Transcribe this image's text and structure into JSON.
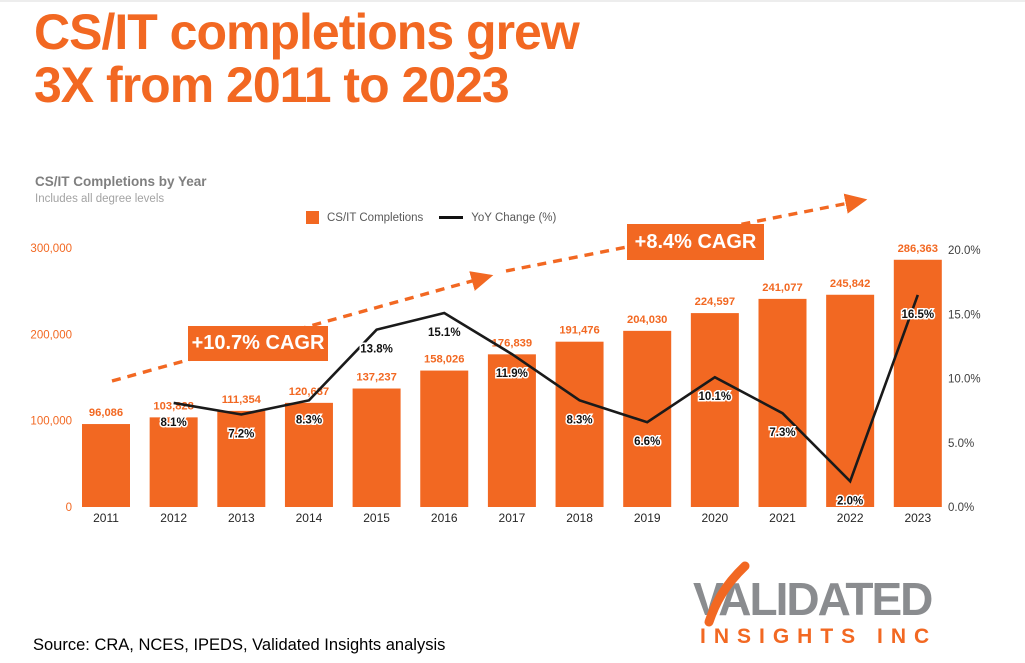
{
  "page": {
    "title_line1": "CS/IT completions grew",
    "title_line2": "3X from 2011 to 2023",
    "source": "Source: CRA, NCES, IPEDS, Validated Insights analysis"
  },
  "chart_header": {
    "title": "CS/IT Completions by Year",
    "subtitle": "Includes all degree levels"
  },
  "legend": {
    "bars_label": "CS/IT Completions",
    "line_label": "YoY Change (%)"
  },
  "annotations": {
    "cagr_1": "+10.7% CAGR",
    "cagr_2": "+8.4% CAGR"
  },
  "logo": {
    "line1": "VALIDATED",
    "line2": "INSIGHTS INC"
  },
  "colors": {
    "orange": "#F26822",
    "line_black": "#1a1a1a",
    "bar_label_orange": "#F26822",
    "left_tick_orange": "#F26822",
    "right_tick_gray": "#3f3f3f",
    "year_gray": "#262626"
  },
  "chart_data": {
    "type": "bar",
    "title": "CS/IT Completions by Year",
    "subtitle": "Includes all degree levels",
    "categories": [
      "2011",
      "2012",
      "2013",
      "2014",
      "2015",
      "2016",
      "2017",
      "2018",
      "2019",
      "2020",
      "2021",
      "2022",
      "2023"
    ],
    "series": [
      {
        "name": "CS/IT Completions",
        "type": "bar",
        "axis": "left",
        "values": [
          96086,
          103828,
          111354,
          120637,
          137237,
          158026,
          176839,
          191476,
          204030,
          224597,
          241077,
          245842,
          286363
        ],
        "labels": [
          "96,086",
          "103,828",
          "111,354",
          "120,637",
          "137,237",
          "158,026",
          "176,839",
          "191,476",
          "204,030",
          "224,597",
          "241,077",
          "245,842",
          "286,363"
        ]
      },
      {
        "name": "YoY Change (%)",
        "type": "line",
        "axis": "right",
        "values": [
          null,
          8.1,
          7.2,
          8.3,
          13.8,
          15.1,
          11.9,
          8.3,
          6.6,
          10.1,
          7.3,
          2.0,
          16.5
        ],
        "labels": [
          null,
          "8.1%",
          "7.2%",
          "8.3%",
          "13.8%",
          "15.1%",
          "11.9%",
          "8.3%",
          "6.6%",
          "10.1%",
          "7.3%",
          "2.0%",
          "16.5%"
        ]
      }
    ],
    "left_axis": {
      "ticks": [
        "300,000",
        "200,000",
        "100,000",
        "0"
      ],
      "tick_values": [
        300000,
        200000,
        100000,
        0
      ],
      "range": [
        0,
        300000
      ]
    },
    "right_axis": {
      "ticks": [
        "20.0%",
        "15.0%",
        "10.0%",
        "5.0%",
        "0.0%"
      ],
      "tick_values": [
        20,
        15,
        10,
        5,
        0
      ],
      "range": [
        0,
        20
      ]
    },
    "grid": false,
    "legend_position": "top",
    "annotations": [
      "+10.7% CAGR",
      "+8.4% CAGR"
    ]
  }
}
